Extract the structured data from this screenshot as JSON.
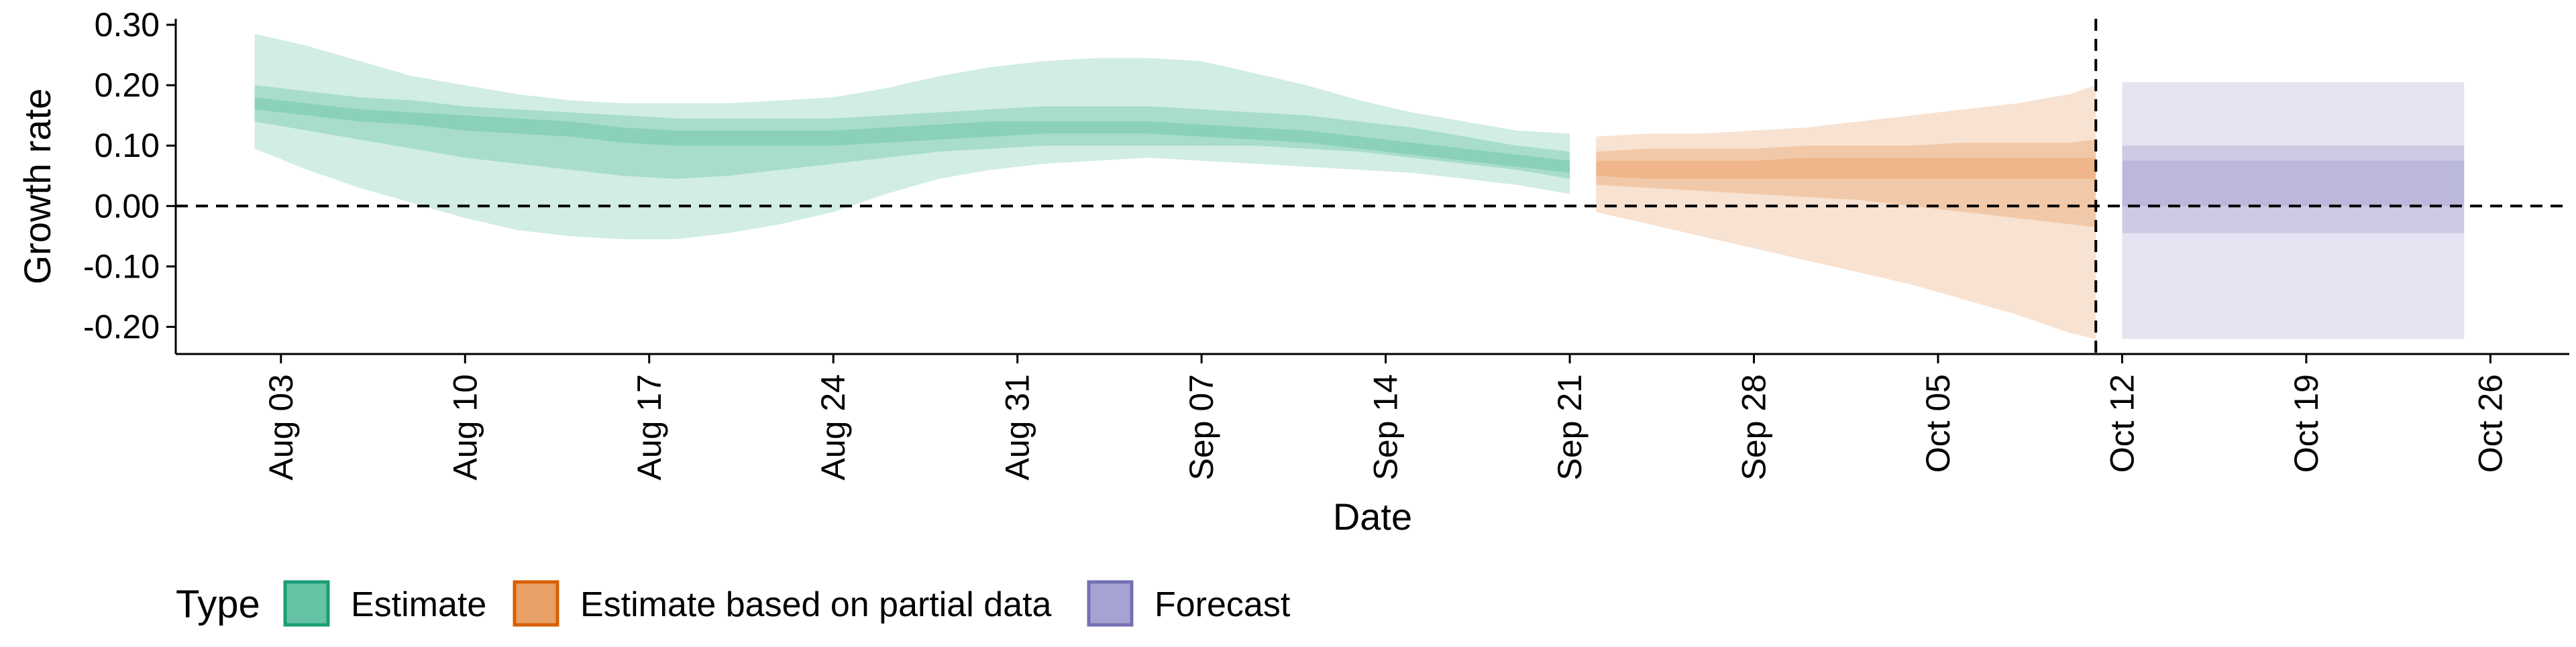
{
  "chart_data": {
    "type": "area",
    "title": "",
    "xlabel": "Date",
    "ylabel": "Growth rate",
    "x_axis": {
      "type": "date",
      "start": "2020-07-30",
      "end": "2020-10-29",
      "ticks": [
        "2020-08-03",
        "2020-08-10",
        "2020-08-17",
        "2020-08-24",
        "2020-08-31",
        "2020-09-07",
        "2020-09-14",
        "2020-09-21",
        "2020-09-28",
        "2020-10-05",
        "2020-10-12",
        "2020-10-19",
        "2020-10-26"
      ],
      "tick_labels": [
        "Aug 03",
        "Aug 10",
        "Aug 17",
        "Aug 24",
        "Aug 31",
        "Sep 07",
        "Sep 14",
        "Sep 21",
        "Sep 28",
        "Oct 05",
        "Oct 12",
        "Oct 19",
        "Oct 26"
      ]
    },
    "y_axis": {
      "range": [
        -0.245,
        0.31
      ],
      "ticks": [
        0.3,
        0.2,
        0.1,
        0.0,
        -0.1,
        -0.2
      ],
      "tick_labels": [
        "0.30",
        "0.20",
        "0.10",
        "0.00",
        "-0.10",
        "-0.20"
      ]
    },
    "reference_lines": [
      {
        "orientation": "horizontal",
        "y": 0,
        "style": "dashed"
      },
      {
        "orientation": "vertical",
        "x": "2020-10-11",
        "style": "dashed"
      }
    ],
    "legend": {
      "title": "Type",
      "position": "bottom-left",
      "items": [
        {
          "label": "Estimate",
          "fill": "#66c2a5",
          "stroke": "#1b9e77"
        },
        {
          "label": "Estimate based on partial data",
          "fill": "#e8a066",
          "stroke": "#d95f02"
        },
        {
          "label": "Forecast",
          "fill": "#a6a2d1",
          "stroke": "#7570b3"
        }
      ]
    },
    "series": [
      {
        "name": "Estimate",
        "color": "#66c2a5",
        "x": [
          "2020-08-02",
          "2020-08-04",
          "2020-08-06",
          "2020-08-08",
          "2020-08-10",
          "2020-08-12",
          "2020-08-14",
          "2020-08-16",
          "2020-08-18",
          "2020-08-20",
          "2020-08-22",
          "2020-08-24",
          "2020-08-26",
          "2020-08-28",
          "2020-08-30",
          "2020-09-01",
          "2020-09-03",
          "2020-09-05",
          "2020-09-07",
          "2020-09-09",
          "2020-09-11",
          "2020-09-13",
          "2020-09-15",
          "2020-09-17",
          "2020-09-19",
          "2020-09-21"
        ],
        "bands": [
          {
            "level": "90%",
            "lower": [
              0.095,
              0.06,
              0.03,
              0.005,
              -0.02,
              -0.04,
              -0.05,
              -0.055,
              -0.055,
              -0.045,
              -0.03,
              -0.01,
              0.02,
              0.045,
              0.06,
              0.07,
              0.075,
              0.08,
              0.075,
              0.07,
              0.065,
              0.06,
              0.055,
              0.045,
              0.035,
              0.02
            ],
            "upper": [
              0.285,
              0.265,
              0.24,
              0.215,
              0.2,
              0.185,
              0.175,
              0.17,
              0.17,
              0.17,
              0.175,
              0.18,
              0.195,
              0.215,
              0.23,
              0.24,
              0.245,
              0.245,
              0.24,
              0.22,
              0.2,
              0.175,
              0.155,
              0.14,
              0.125,
              0.12
            ]
          },
          {
            "level": "50%",
            "lower": [
              0.14,
              0.125,
              0.11,
              0.095,
              0.08,
              0.07,
              0.06,
              0.05,
              0.045,
              0.05,
              0.06,
              0.07,
              0.08,
              0.09,
              0.095,
              0.1,
              0.1,
              0.1,
              0.1,
              0.1,
              0.095,
              0.09,
              0.08,
              0.07,
              0.06,
              0.045
            ],
            "upper": [
              0.2,
              0.19,
              0.18,
              0.175,
              0.165,
              0.16,
              0.155,
              0.15,
              0.145,
              0.145,
              0.145,
              0.145,
              0.15,
              0.155,
              0.16,
              0.165,
              0.165,
              0.165,
              0.16,
              0.155,
              0.15,
              0.14,
              0.13,
              0.115,
              0.1,
              0.09
            ]
          },
          {
            "level": "20%",
            "lower": [
              0.16,
              0.15,
              0.14,
              0.135,
              0.125,
              0.12,
              0.115,
              0.105,
              0.1,
              0.1,
              0.1,
              0.1,
              0.105,
              0.11,
              0.115,
              0.12,
              0.12,
              0.12,
              0.115,
              0.11,
              0.105,
              0.095,
              0.085,
              0.075,
              0.065,
              0.055
            ],
            "upper": [
              0.18,
              0.17,
              0.16,
              0.155,
              0.15,
              0.145,
              0.14,
              0.13,
              0.125,
              0.125,
              0.125,
              0.125,
              0.13,
              0.135,
              0.14,
              0.14,
              0.14,
              0.14,
              0.135,
              0.13,
              0.125,
              0.115,
              0.105,
              0.095,
              0.085,
              0.075
            ]
          }
        ]
      },
      {
        "name": "Estimate based on partial data",
        "color": "#e8a066",
        "x": [
          "2020-09-22",
          "2020-09-24",
          "2020-09-26",
          "2020-09-28",
          "2020-09-30",
          "2020-10-02",
          "2020-10-04",
          "2020-10-06",
          "2020-10-08",
          "2020-10-10",
          "2020-10-11"
        ],
        "bands": [
          {
            "level": "90%",
            "lower": [
              -0.01,
              -0.03,
              -0.05,
              -0.07,
              -0.09,
              -0.11,
              -0.13,
              -0.155,
              -0.18,
              -0.21,
              -0.22
            ],
            "upper": [
              0.115,
              0.12,
              0.12,
              0.125,
              0.13,
              0.14,
              0.15,
              0.16,
              0.17,
              0.185,
              0.2
            ]
          },
          {
            "level": "50%",
            "lower": [
              0.035,
              0.03,
              0.025,
              0.02,
              0.015,
              0.01,
              0.0,
              -0.01,
              -0.02,
              -0.03,
              -0.035
            ],
            "upper": [
              0.09,
              0.095,
              0.095,
              0.095,
              0.1,
              0.1,
              0.1,
              0.105,
              0.105,
              0.105,
              0.11
            ]
          },
          {
            "level": "20%",
            "lower": [
              0.05,
              0.045,
              0.045,
              0.045,
              0.045,
              0.045,
              0.045,
              0.045,
              0.045,
              0.045,
              0.045
            ],
            "upper": [
              0.075,
              0.075,
              0.075,
              0.075,
              0.08,
              0.08,
              0.08,
              0.08,
              0.08,
              0.08,
              0.08
            ]
          }
        ]
      },
      {
        "name": "Forecast",
        "color": "#a6a2d1",
        "x": [
          "2020-10-12",
          "2020-10-25"
        ],
        "bands": [
          {
            "level": "90%",
            "lower": [
              -0.22,
              -0.22
            ],
            "upper": [
              0.205,
              0.205
            ]
          },
          {
            "level": "50%",
            "lower": [
              -0.045,
              -0.045
            ],
            "upper": [
              0.1,
              0.1
            ]
          },
          {
            "level": "20%",
            "lower": [
              0.0,
              0.0
            ],
            "upper": [
              0.075,
              0.075
            ]
          }
        ]
      }
    ]
  }
}
